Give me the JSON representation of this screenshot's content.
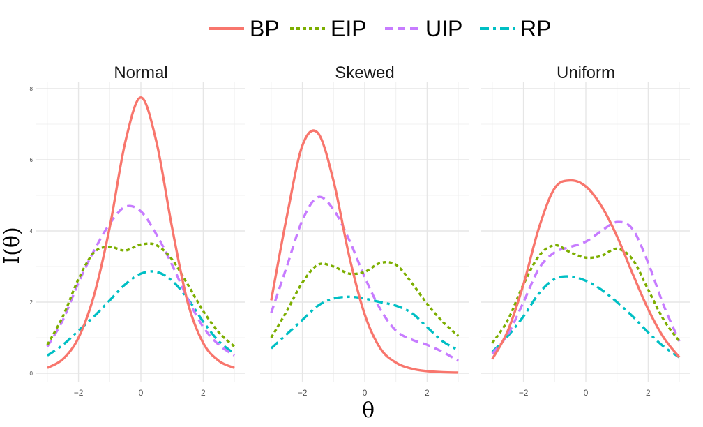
{
  "chart_data": {
    "type": "line",
    "xlabel": "θ",
    "ylabel": "I(θ)",
    "xlim": [
      -3,
      3
    ],
    "ylim": [
      0,
      8
    ],
    "x_ticks": [
      -2,
      0,
      2
    ],
    "y_ticks": [
      0,
      2,
      4,
      6,
      8
    ],
    "grid": true,
    "legend_position": "top",
    "legend": [
      "BP",
      "EIP",
      "UIP",
      "RP"
    ],
    "series_styles": [
      {
        "name": "BP",
        "color": "#F8766D",
        "dash": "solid"
      },
      {
        "name": "EIP",
        "color": "#7CAE00",
        "dash": "dotted"
      },
      {
        "name": "UIP",
        "color": "#C77CFF",
        "dash": "dashed"
      },
      {
        "name": "RP",
        "color": "#00BFC4",
        "dash": "longdash"
      }
    ],
    "x": [
      -3,
      -2.5,
      -2,
      -1.5,
      -1,
      -0.5,
      0,
      0.5,
      1,
      1.5,
      2,
      2.5,
      3
    ],
    "facets": [
      {
        "title": "Normal",
        "series": [
          {
            "name": "BP",
            "values": [
              0.15,
              0.4,
              1.0,
              2.2,
              4.1,
              6.5,
              7.75,
              6.5,
              4.1,
              2.0,
              0.85,
              0.35,
              0.15
            ]
          },
          {
            "name": "EIP",
            "values": [
              0.8,
              1.6,
              2.65,
              3.4,
              3.55,
              3.45,
              3.62,
              3.6,
              3.2,
              2.5,
              1.75,
              1.15,
              0.75
            ]
          },
          {
            "name": "UIP",
            "values": [
              0.75,
              1.5,
              2.55,
              3.45,
              4.2,
              4.68,
              4.55,
              3.9,
              3.05,
              2.1,
              1.3,
              0.8,
              0.5
            ]
          },
          {
            "name": "RP",
            "values": [
              0.5,
              0.8,
              1.2,
              1.6,
              2.05,
              2.5,
              2.8,
              2.85,
              2.6,
              2.1,
              1.45,
              0.9,
              0.55
            ]
          }
        ]
      },
      {
        "title": "Skewed",
        "series": [
          {
            "name": "BP",
            "values": [
              2.05,
              4.4,
              6.4,
              6.75,
              5.4,
              3.3,
              1.65,
              0.7,
              0.3,
              0.13,
              0.06,
              0.03,
              0.02
            ]
          },
          {
            "name": "EIP",
            "values": [
              1.0,
              1.75,
              2.55,
              3.05,
              3.0,
              2.8,
              2.85,
              3.1,
              3.05,
              2.55,
              1.95,
              1.45,
              1.05
            ]
          },
          {
            "name": "UIP",
            "values": [
              1.7,
              3.0,
              4.3,
              4.95,
              4.6,
              3.75,
              2.7,
              1.8,
              1.2,
              0.95,
              0.8,
              0.6,
              0.35
            ]
          },
          {
            "name": "RP",
            "values": [
              0.7,
              1.1,
              1.5,
              1.9,
              2.1,
              2.15,
              2.1,
              2.0,
              1.9,
              1.7,
              1.3,
              0.9,
              0.65
            ]
          }
        ]
      },
      {
        "title": "Uniform",
        "series": [
          {
            "name": "BP",
            "values": [
              0.4,
              1.2,
              2.5,
              4.1,
              5.2,
              5.42,
              5.25,
              4.7,
              3.85,
              2.8,
              1.8,
              1.0,
              0.45
            ]
          },
          {
            "name": "EIP",
            "values": [
              0.85,
              1.5,
              2.5,
              3.3,
              3.6,
              3.4,
              3.25,
              3.3,
              3.5,
              3.2,
              2.35,
              1.5,
              0.9
            ]
          },
          {
            "name": "UIP",
            "values": [
              0.55,
              1.1,
              2.0,
              2.95,
              3.4,
              3.55,
              3.7,
              4.0,
              4.25,
              4.05,
              3.1,
              1.9,
              0.9
            ]
          },
          {
            "name": "RP",
            "values": [
              0.6,
              1.05,
              1.6,
              2.25,
              2.65,
              2.72,
              2.6,
              2.35,
              2.0,
              1.6,
              1.15,
              0.75,
              0.45
            ]
          }
        ]
      }
    ]
  }
}
